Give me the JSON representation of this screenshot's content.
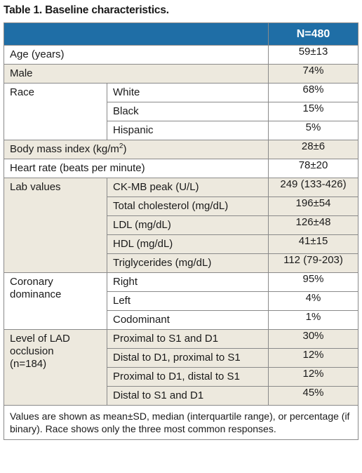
{
  "title": "Table 1. Baseline characteristics.",
  "header": {
    "col_label": "",
    "col_value": "N=480"
  },
  "rows": {
    "age": {
      "label": "Age (years)",
      "value": "59±13"
    },
    "male": {
      "label": "Male",
      "value": "74%"
    },
    "race": {
      "label": "Race",
      "items": [
        {
          "label": "White",
          "value": "68%"
        },
        {
          "label": "Black",
          "value": "15%"
        },
        {
          "label": "Hispanic",
          "value": "5%"
        }
      ]
    },
    "bmi": {
      "label_text": "Body mass index (kg/m",
      "label_sup": "2",
      "label_close": ")",
      "value": "28±6"
    },
    "hr": {
      "label": "Heart rate (beats per minute)",
      "value": "78±20"
    },
    "lab": {
      "label": "Lab values",
      "items": [
        {
          "label": "CK-MB peak (U/L)",
          "value": "249 (133-426)"
        },
        {
          "label": "Total cholesterol (mg/dL)",
          "value": "196±54"
        },
        {
          "label": "LDL (mg/dL)",
          "value": "126±48"
        },
        {
          "label": "HDL (mg/dL)",
          "value": "41±15"
        },
        {
          "label": "Triglycerides (mg/dL)",
          "value": "112 (79-203)"
        }
      ]
    },
    "dominance": {
      "label_line1": "Coronary",
      "label_line2": "dominance",
      "items": [
        {
          "label": "Right",
          "value": "95%"
        },
        {
          "label": "Left",
          "value": "4%"
        },
        {
          "label": "Codominant",
          "value": "1%"
        }
      ]
    },
    "lad": {
      "label_line1": "Level of LAD",
      "label_line2": "occlusion",
      "label_line3": "(n=184)",
      "items": [
        {
          "label": "Proximal to S1 and D1",
          "value": "30%"
        },
        {
          "label": "Distal to D1, proximal to S1",
          "value": "12%"
        },
        {
          "label": "Proximal to D1, distal to S1",
          "value": "12%"
        },
        {
          "label": "Distal to S1 and D1",
          "value": "45%"
        }
      ]
    }
  },
  "footnote": "Values are shown as mean±SD, median (interquartile range), or percentage (if binary). Race shows only the three most common responses."
}
